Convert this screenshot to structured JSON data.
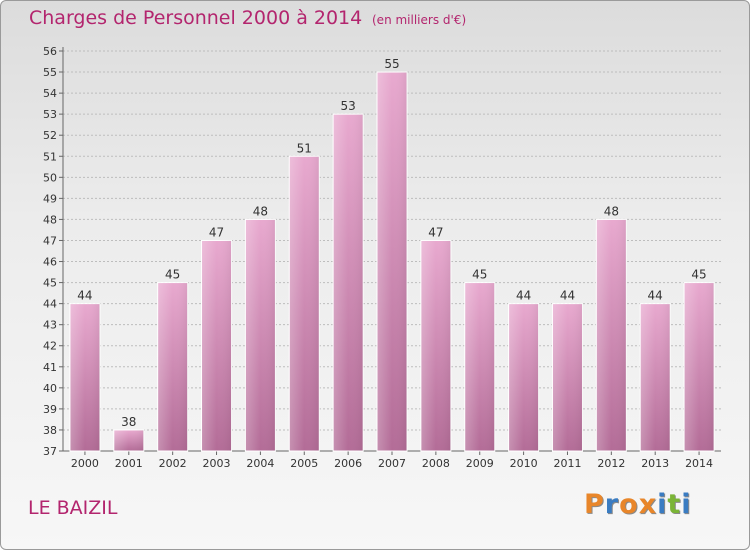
{
  "header": {
    "title": "Charges de Personnel 2000 à 2014",
    "unit": "(en milliers d'€)"
  },
  "footer": {
    "commune": "LE BAIZIL",
    "logo_letters": [
      "P",
      "r",
      "o",
      "x",
      "i",
      "t",
      "i"
    ],
    "logo_colors": [
      "#e8862a",
      "#3a7cc2",
      "#e8862a",
      "#e8862a",
      "#3a7cc2",
      "#7bb536",
      "#3a7cc2"
    ]
  },
  "chart_data": {
    "type": "bar",
    "title": "Charges de Personnel 2000 à 2014",
    "subtitle": "(en milliers d'€)",
    "categories": [
      "2000",
      "2001",
      "2002",
      "2003",
      "2004",
      "2005",
      "2006",
      "2007",
      "2008",
      "2009",
      "2010",
      "2011",
      "2012",
      "2013",
      "2014"
    ],
    "values": [
      44,
      38,
      45,
      47,
      48,
      51,
      53,
      55,
      47,
      45,
      44,
      44,
      48,
      44,
      45
    ],
    "ylim": [
      37,
      56
    ],
    "yticks": [
      37,
      38,
      39,
      40,
      41,
      42,
      43,
      44,
      45,
      46,
      47,
      48,
      49,
      50,
      51,
      52,
      53,
      54,
      55,
      56
    ],
    "grid": true,
    "bar_color": "#e0a0c8",
    "bar_color_dark": "#b56f98",
    "xlabel": "",
    "ylabel": ""
  }
}
